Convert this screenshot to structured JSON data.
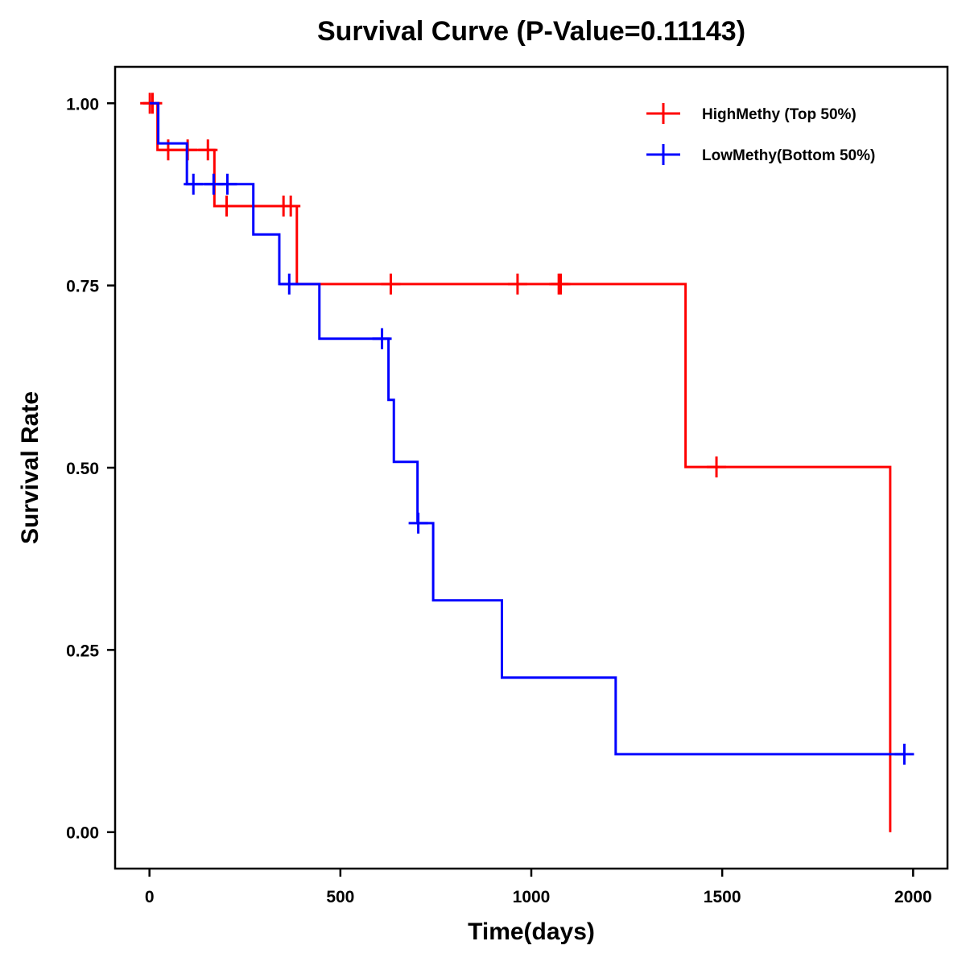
{
  "chart_data": {
    "type": "line",
    "subtype": "kaplan-meier-step",
    "title": "Survival Curve (P-Value=0.11143)",
    "xlabel": "Time(days)",
    "ylabel": "Survival Rate",
    "xlim": [
      -90,
      2090
    ],
    "ylim": [
      -0.05,
      1.05
    ],
    "x_ticks": [
      0,
      500,
      1000,
      1500,
      2000
    ],
    "x_tick_labels": [
      "0",
      "500",
      "1000",
      "1500",
      "2000"
    ],
    "y_ticks": [
      0,
      0.25,
      0.5,
      0.75,
      1.0
    ],
    "y_tick_labels": [
      "0.00",
      "0.25",
      "0.50",
      "0.75",
      "1.00"
    ],
    "grid": false,
    "legend": {
      "position": "top-right"
    },
    "series": [
      {
        "name": "HighMethy (Top 50%)",
        "color": "#ff0000",
        "steps": [
          {
            "t": 0,
            "s": 1.0
          },
          {
            "t": 21,
            "s": 0.936
          },
          {
            "t": 170,
            "s": 0.859
          },
          {
            "t": 386,
            "s": 0.752
          },
          {
            "t": 1404,
            "s": 0.501
          },
          {
            "t": 1940,
            "s": 0.0
          }
        ],
        "end_time": 1940,
        "censored": [
          {
            "t": 1,
            "s": 1.0
          },
          {
            "t": 8,
            "s": 1.0
          },
          {
            "t": 49,
            "s": 0.936
          },
          {
            "t": 100,
            "s": 0.936
          },
          {
            "t": 153,
            "s": 0.936
          },
          {
            "t": 202,
            "s": 0.859
          },
          {
            "t": 351,
            "s": 0.859
          },
          {
            "t": 370,
            "s": 0.859
          },
          {
            "t": 632,
            "s": 0.752
          },
          {
            "t": 964,
            "s": 0.752
          },
          {
            "t": 1072,
            "s": 0.752
          },
          {
            "t": 1077,
            "s": 0.752
          },
          {
            "t": 1485,
            "s": 0.501
          }
        ]
      },
      {
        "name": "LowMethy(Bottom 50%)",
        "color": "#0000ff",
        "steps": [
          {
            "t": 0,
            "s": 1.0
          },
          {
            "t": 23,
            "s": 0.945
          },
          {
            "t": 98,
            "s": 0.889
          },
          {
            "t": 272,
            "s": 0.82
          },
          {
            "t": 340,
            "s": 0.752
          },
          {
            "t": 445,
            "s": 0.677
          },
          {
            "t": 626,
            "s": 0.593
          },
          {
            "t": 640,
            "s": 0.508
          },
          {
            "t": 702,
            "s": 0.424
          },
          {
            "t": 743,
            "s": 0.318
          },
          {
            "t": 923,
            "s": 0.212
          },
          {
            "t": 1221,
            "s": 0.107
          }
        ],
        "end_time": 1977,
        "censored": [
          {
            "t": 115,
            "s": 0.889
          },
          {
            "t": 168,
            "s": 0.889
          },
          {
            "t": 204,
            "s": 0.889
          },
          {
            "t": 366,
            "s": 0.752
          },
          {
            "t": 609,
            "s": 0.677
          },
          {
            "t": 704,
            "s": 0.424
          },
          {
            "t": 1977,
            "s": 0.107
          }
        ]
      }
    ]
  }
}
